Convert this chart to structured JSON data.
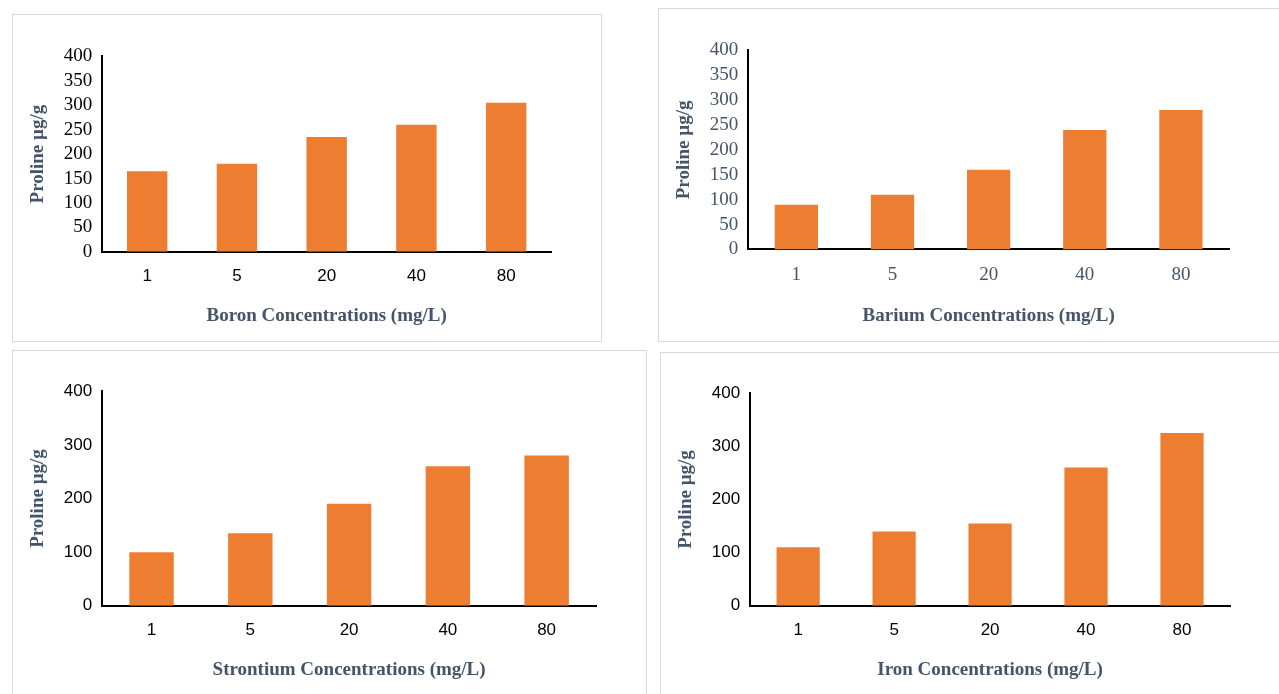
{
  "chart_data": [
    {
      "type": "bar",
      "xlabel": "Boron Concentrations (mg/L)",
      "ylabel": "Proline µg/g",
      "categories": [
        "1",
        "5",
        "20",
        "40",
        "80"
      ],
      "values": [
        165,
        180,
        235,
        260,
        305
      ],
      "color": "#ed7d31",
      "ylim": [
        0,
        400
      ],
      "yticks": [
        0,
        50,
        100,
        150,
        200,
        250,
        300,
        350,
        400
      ],
      "grid": false,
      "legend": false
    },
    {
      "type": "bar",
      "xlabel": "Barium Concentrations (mg/L)",
      "ylabel": "Proline µg/g",
      "categories": [
        "1",
        "5",
        "20",
        "40",
        "80"
      ],
      "values": [
        90,
        110,
        160,
        240,
        280
      ],
      "color": "#ed7d31",
      "ylim": [
        0,
        400
      ],
      "yticks": [
        0,
        50,
        100,
        150,
        200,
        250,
        300,
        350,
        400
      ],
      "grid": false,
      "legend": false
    },
    {
      "type": "bar",
      "xlabel": "Strontium Concentrations (mg/L)",
      "ylabel": "Proline µg/g",
      "categories": [
        "1",
        "5",
        "20",
        "40",
        "80"
      ],
      "values": [
        100,
        135,
        190,
        260,
        280
      ],
      "color": "#ed7d31",
      "ylim": [
        0,
        400
      ],
      "yticks": [
        0,
        100,
        200,
        300,
        400
      ],
      "grid": false,
      "legend": false
    },
    {
      "type": "bar",
      "xlabel": "Iron Concentrations (mg/L)",
      "ylabel": "Proline µg/g",
      "categories": [
        "1",
        "5",
        "20",
        "40",
        "80"
      ],
      "values": [
        110,
        140,
        155,
        260,
        325
      ],
      "color": "#ed7d31",
      "ylim": [
        0,
        400
      ],
      "yticks": [
        0,
        100,
        200,
        300,
        400
      ],
      "grid": false,
      "legend": false
    }
  ]
}
